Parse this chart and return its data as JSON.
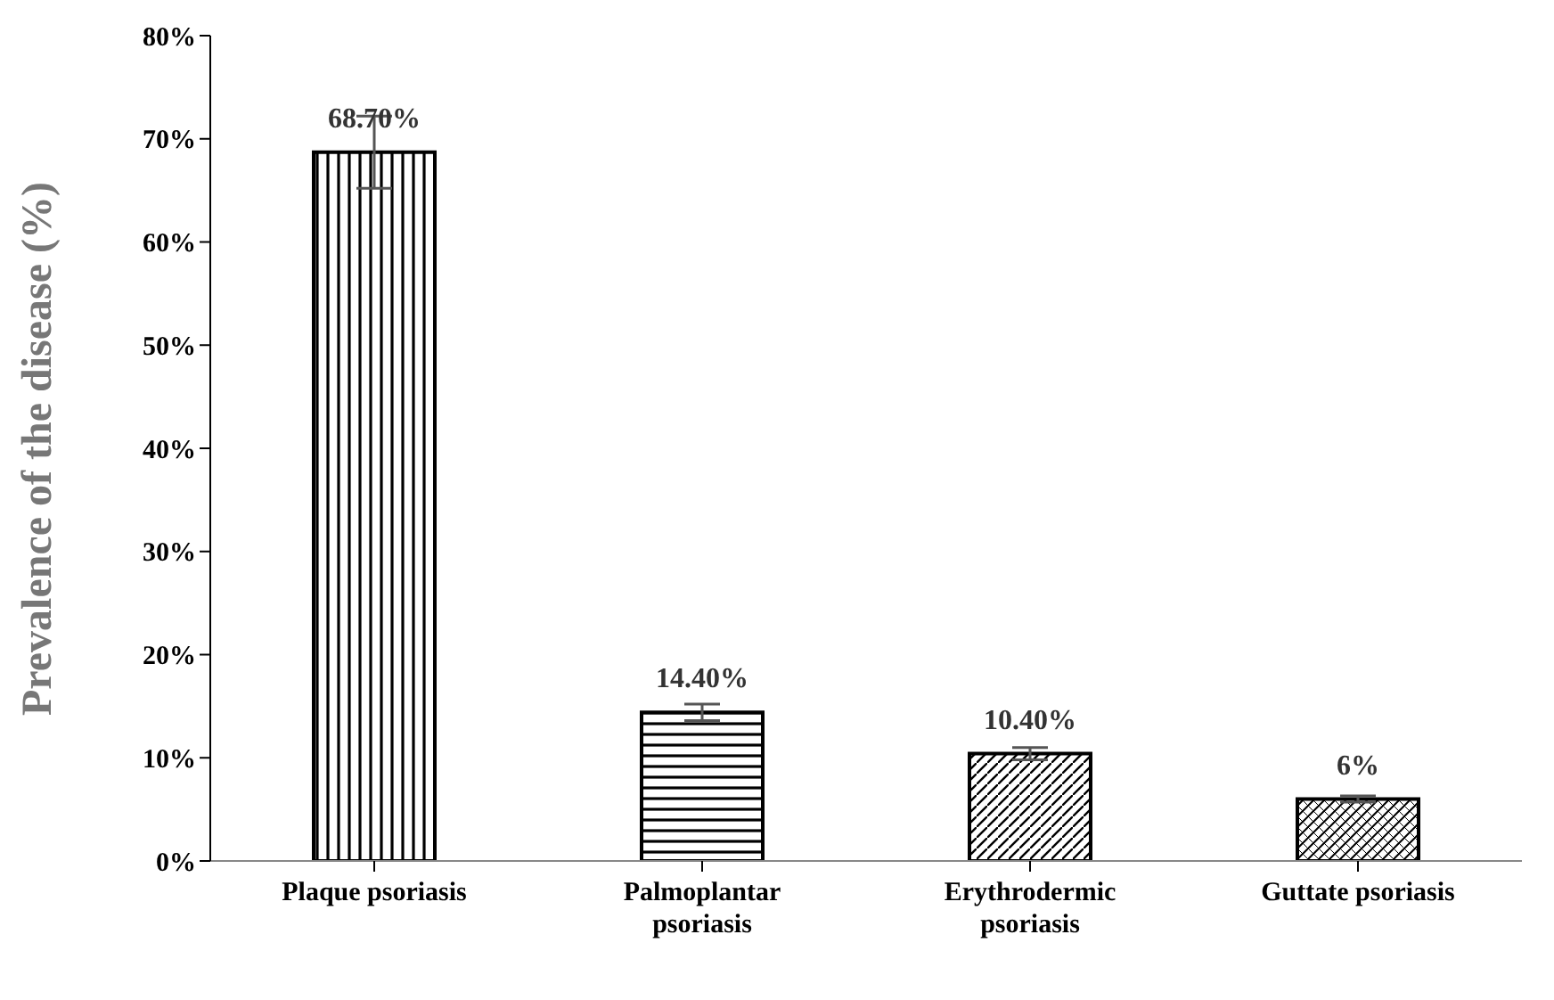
{
  "chart_data": {
    "type": "bar",
    "ylabel": "Prevalence of the disease (%)",
    "categories": [
      "Plaque psoriasis",
      "Palmoplantar psoriasis",
      "Erythrodermic psoriasis",
      "Guttate psoriasis"
    ],
    "values": [
      68.7,
      14.4,
      10.4,
      6
    ],
    "value_labels": [
      "68.70%",
      "14.40%",
      "10.40%",
      "6%"
    ],
    "errors": [
      3.5,
      0.8,
      0.6,
      0.3
    ],
    "colors": [
      "#000000",
      "#000000",
      "#000000",
      "#000000"
    ],
    "ylim": [
      0,
      80
    ],
    "yticks": [
      {
        "value": 0,
        "label": "0%"
      },
      {
        "value": 10,
        "label": "10%"
      },
      {
        "value": 20,
        "label": "20%"
      },
      {
        "value": 30,
        "label": "30%"
      },
      {
        "value": 40,
        "label": "40%"
      },
      {
        "value": 50,
        "label": "50%"
      },
      {
        "value": 60,
        "label": "60%"
      },
      {
        "value": 70,
        "label": "70%"
      },
      {
        "value": 80,
        "label": "80%"
      }
    ],
    "grid": false,
    "legend": false
  }
}
